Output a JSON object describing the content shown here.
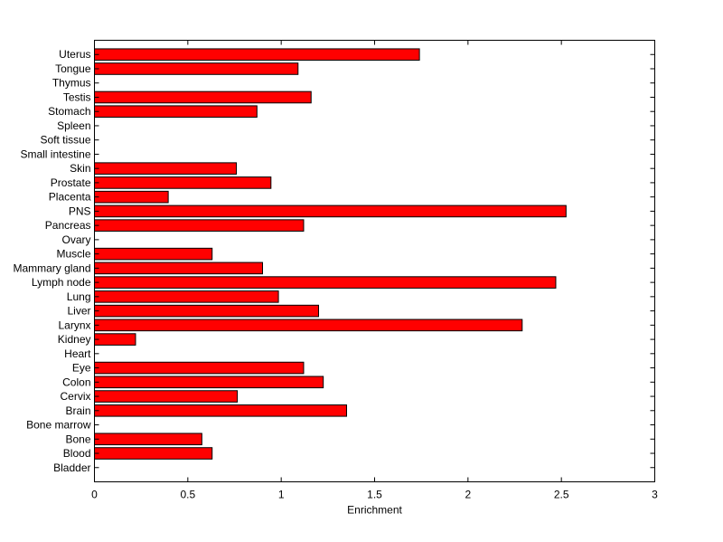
{
  "chart_data": {
    "type": "bar",
    "orientation": "horizontal",
    "title": "",
    "xlabel": "Enrichment",
    "ylabel": "",
    "xlim": [
      0,
      3
    ],
    "xticks": [
      "0",
      "0.5",
      "1",
      "1.5",
      "2",
      "2.5",
      "3"
    ],
    "grid": false,
    "bar_color": "#ff0000",
    "categories": [
      "Bladder",
      "Blood",
      "Bone",
      "Bone marrow",
      "Brain",
      "Cervix",
      "Colon",
      "Eye",
      "Heart",
      "Kidney",
      "Larynx",
      "Liver",
      "Lung",
      "Lymph node",
      "Mammary gland",
      "Muscle",
      "Ovary",
      "Pancreas",
      "PNS",
      "Placenta",
      "Prostate",
      "Skin",
      "Small intestine",
      "Soft tissue",
      "Spleen",
      "Stomach",
      "Testis",
      "Thymus",
      "Tongue",
      "Uterus"
    ],
    "values": [
      0,
      0.63,
      0.575,
      0,
      1.35,
      0.765,
      1.225,
      1.12,
      0,
      0.22,
      2.29,
      1.2,
      0.985,
      2.47,
      0.9,
      0.63,
      0,
      1.12,
      2.525,
      0.395,
      0.945,
      0.76,
      0,
      0,
      0,
      0.87,
      1.16,
      0,
      1.09,
      1.74
    ]
  }
}
